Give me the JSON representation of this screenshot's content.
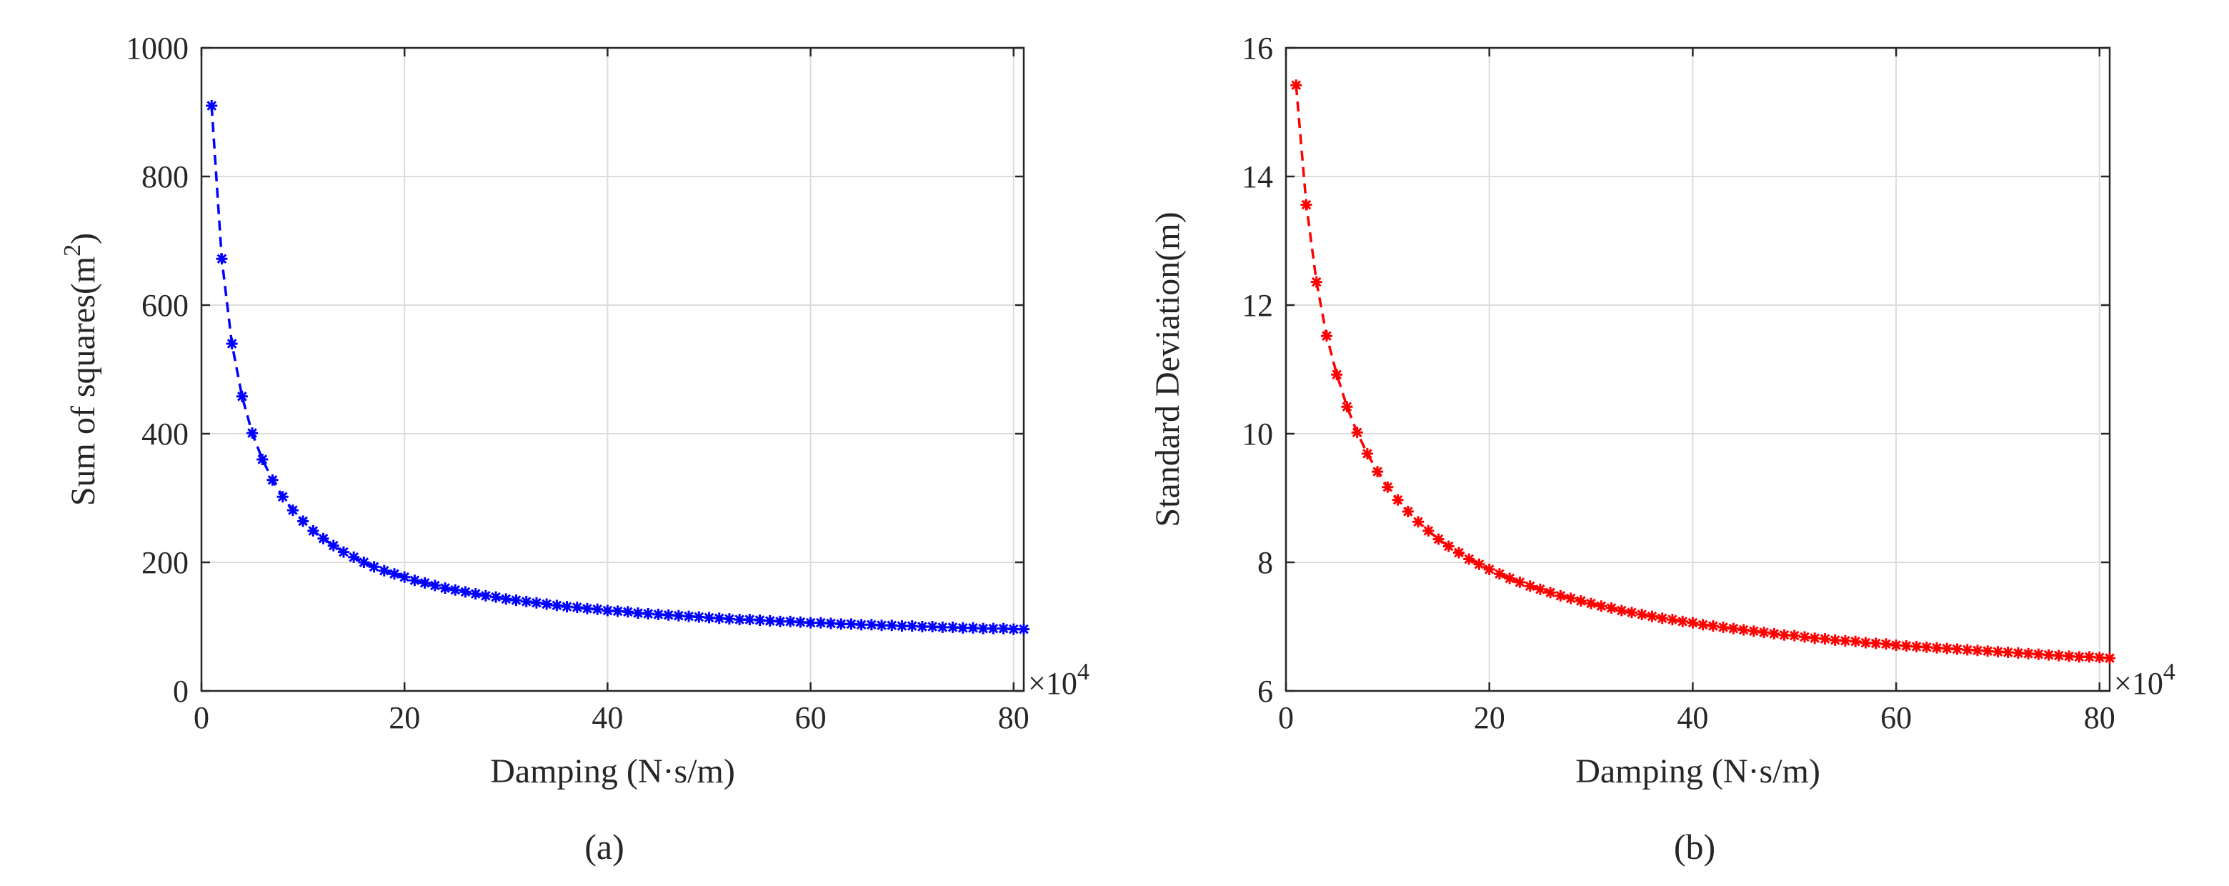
{
  "chart_data": [
    {
      "type": "line",
      "panel_caption": "(a)",
      "title": "",
      "xlabel": "Damping (N·s/m)",
      "ylabel": "Sum of squares(m",
      "ylabel_superscript": "2",
      "ylabel_close": ")",
      "x_multiplier": "×10",
      "x_multiplier_exp": "4",
      "xlim": [
        0,
        81
      ],
      "ylim": [
        0,
        1000
      ],
      "xticks": [
        0,
        20,
        40,
        60,
        80
      ],
      "yticks": [
        0,
        200,
        400,
        600,
        800,
        1000
      ],
      "grid": true,
      "line_style": "dashed",
      "marker": "asterisk",
      "color": "#0000ff",
      "series": [
        {
          "name": "Sum of squares",
          "x": [
            1,
            2,
            3,
            4,
            5,
            6,
            7,
            8,
            9,
            10,
            11,
            12,
            13,
            14,
            15,
            16,
            17,
            18,
            19,
            20,
            21,
            22,
            23,
            24,
            25,
            26,
            27,
            28,
            29,
            30,
            31,
            32,
            33,
            34,
            35,
            36,
            37,
            38,
            39,
            40,
            41,
            42,
            43,
            44,
            45,
            46,
            47,
            48,
            49,
            50,
            51,
            52,
            53,
            54,
            55,
            56,
            57,
            58,
            59,
            60,
            61,
            62,
            63,
            64,
            65,
            66,
            67,
            68,
            69,
            70,
            71,
            72,
            73,
            74,
            75,
            76,
            77,
            78,
            79,
            80,
            81
          ],
          "y": [
            910,
            672,
            540,
            458,
            401,
            360,
            328,
            302,
            281,
            264,
            249,
            237,
            226,
            216,
            208,
            200,
            193,
            187,
            182,
            177,
            172,
            168,
            164,
            160,
            157,
            154,
            151,
            148,
            146,
            143,
            141,
            139,
            137,
            135,
            133,
            131,
            130,
            128,
            127,
            125,
            124,
            123,
            121,
            120,
            119,
            118,
            117,
            116,
            115,
            114,
            113,
            112,
            111,
            111,
            110,
            109,
            108,
            108,
            107,
            106,
            106,
            105,
            104,
            104,
            103,
            103,
            102,
            102,
            101,
            101,
            100,
            100,
            99,
            99,
            98,
            98,
            97,
            97,
            97,
            96,
            96
          ]
        }
      ]
    },
    {
      "type": "line",
      "panel_caption": "(b)",
      "title": "",
      "xlabel": "Damping (N·s/m)",
      "ylabel": "Standard Deviation(m)",
      "x_multiplier": "×10",
      "x_multiplier_exp": "4",
      "xlim": [
        0,
        81
      ],
      "ylim": [
        6,
        16
      ],
      "xticks": [
        0,
        20,
        40,
        60,
        80
      ],
      "yticks": [
        6,
        8,
        10,
        12,
        14,
        16
      ],
      "grid": true,
      "line_style": "dashed",
      "marker": "asterisk",
      "color": "#ff0000",
      "series": [
        {
          "name": "Standard Deviation",
          "x": [
            1,
            2,
            3,
            4,
            5,
            6,
            7,
            8,
            9,
            10,
            11,
            12,
            13,
            14,
            15,
            16,
            17,
            18,
            19,
            20,
            21,
            22,
            23,
            24,
            25,
            26,
            27,
            28,
            29,
            30,
            31,
            32,
            33,
            34,
            35,
            36,
            37,
            38,
            39,
            40,
            41,
            42,
            43,
            44,
            45,
            46,
            47,
            48,
            49,
            50,
            51,
            52,
            53,
            54,
            55,
            56,
            57,
            58,
            59,
            60,
            61,
            62,
            63,
            64,
            65,
            66,
            67,
            68,
            69,
            70,
            71,
            72,
            73,
            74,
            75,
            76,
            77,
            78,
            79,
            80,
            81
          ],
          "y": [
            15.42,
            13.56,
            12.36,
            11.52,
            10.92,
            10.42,
            10.02,
            9.69,
            9.41,
            9.17,
            8.97,
            8.79,
            8.63,
            8.49,
            8.36,
            8.25,
            8.15,
            8.05,
            7.97,
            7.89,
            7.82,
            7.75,
            7.69,
            7.63,
            7.58,
            7.53,
            7.48,
            7.44,
            7.4,
            7.36,
            7.32,
            7.29,
            7.25,
            7.22,
            7.19,
            7.16,
            7.13,
            7.11,
            7.08,
            7.06,
            7.03,
            7.01,
            6.99,
            6.97,
            6.95,
            6.93,
            6.91,
            6.89,
            6.87,
            6.86,
            6.84,
            6.82,
            6.81,
            6.79,
            6.78,
            6.77,
            6.75,
            6.74,
            6.73,
            6.71,
            6.7,
            6.69,
            6.68,
            6.67,
            6.66,
            6.65,
            6.64,
            6.63,
            6.62,
            6.61,
            6.6,
            6.59,
            6.58,
            6.57,
            6.56,
            6.55,
            6.54,
            6.53,
            6.53,
            6.52,
            6.51
          ]
        }
      ]
    }
  ]
}
